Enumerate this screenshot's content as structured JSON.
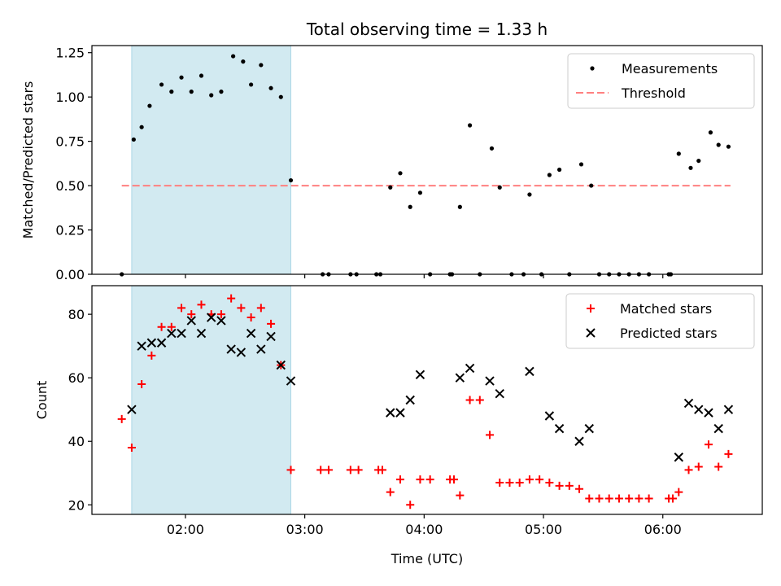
{
  "title": "Total observing time = 1.33 h",
  "colors": {
    "measurement": "#000000",
    "threshold": "#ff8080",
    "matched": "#ff0000",
    "predicted": "#000000",
    "highlight": "#add8e6"
  },
  "chart_data": [
    {
      "type": "scatter",
      "xlabel": "",
      "ylabel": "Matched/Predicted stars",
      "xlim": [
        "01:13",
        "06:50"
      ],
      "ylim": [
        0,
        1.29
      ],
      "yticks": [
        "0.00",
        "0.25",
        "0.50",
        "0.75",
        "1.00",
        "1.25"
      ],
      "xticks": [
        "02:00",
        "03:00",
        "04:00",
        "05:00",
        "06:00"
      ],
      "highlight_span": [
        "01:33",
        "02:53"
      ],
      "legend": {
        "placement": "top-right",
        "entries": [
          "Measurements",
          "Threshold"
        ]
      },
      "threshold": {
        "name": "Threshold",
        "value": 0.5,
        "x": [
          "01:28",
          "06:34"
        ]
      },
      "series": [
        {
          "name": "Measurements",
          "points": [
            [
              "01:28",
              0
            ],
            [
              "01:34",
              0.76
            ],
            [
              "01:38",
              0.83
            ],
            [
              "01:42",
              0.95
            ],
            [
              "01:48",
              1.07
            ],
            [
              "01:53",
              1.03
            ],
            [
              "01:58",
              1.11
            ],
            [
              "02:03",
              1.03
            ],
            [
              "02:08",
              1.12
            ],
            [
              "02:13",
              1.01
            ],
            [
              "02:18",
              1.03
            ],
            [
              "02:24",
              1.23
            ],
            [
              "02:29",
              1.2
            ],
            [
              "02:33",
              1.07
            ],
            [
              "02:38",
              1.18
            ],
            [
              "02:43",
              1.05
            ],
            [
              "02:48",
              1.0
            ],
            [
              "02:53",
              0.53
            ],
            [
              "03:09",
              0
            ],
            [
              "03:12",
              0
            ],
            [
              "03:23",
              0
            ],
            [
              "03:26",
              0
            ],
            [
              "03:36",
              0
            ],
            [
              "03:38",
              0
            ],
            [
              "03:43",
              0.49
            ],
            [
              "03:48",
              0.57
            ],
            [
              "03:53",
              0.38
            ],
            [
              "03:58",
              0.46
            ],
            [
              "04:03",
              0
            ],
            [
              "04:13",
              0
            ],
            [
              "04:14",
              0
            ],
            [
              "04:18",
              0.38
            ],
            [
              "04:23",
              0.84
            ],
            [
              "04:28",
              0
            ],
            [
              "04:34",
              0.71
            ],
            [
              "04:38",
              0.49
            ],
            [
              "04:44",
              0
            ],
            [
              "04:50",
              0
            ],
            [
              "04:53",
              0.45
            ],
            [
              "04:59",
              0
            ],
            [
              "05:03",
              0.56
            ],
            [
              "05:08",
              0.59
            ],
            [
              "05:13",
              0
            ],
            [
              "05:19",
              0.62
            ],
            [
              "05:24",
              0.5
            ],
            [
              "05:28",
              0
            ],
            [
              "05:33",
              0
            ],
            [
              "05:38",
              0
            ],
            [
              "05:43",
              0
            ],
            [
              "05:48",
              0
            ],
            [
              "05:53",
              0
            ],
            [
              "06:03",
              0
            ],
            [
              "06:04",
              0
            ],
            [
              "06:08",
              0.68
            ],
            [
              "06:14",
              0.6
            ],
            [
              "06:18",
              0.64
            ],
            [
              "06:24",
              0.8
            ],
            [
              "06:28",
              0.73
            ],
            [
              "06:33",
              0.72
            ]
          ]
        }
      ]
    },
    {
      "type": "scatter",
      "xlabel": "Time (UTC)",
      "ylabel": "Count",
      "xlim": [
        "01:13",
        "06:50"
      ],
      "ylim": [
        17,
        89
      ],
      "yticks": [
        "20",
        "40",
        "60",
        "80"
      ],
      "xticks": [
        "02:00",
        "03:00",
        "04:00",
        "05:00",
        "06:00"
      ],
      "highlight_span": [
        "01:33",
        "02:53"
      ],
      "legend": {
        "placement": "top-right",
        "entries": [
          "Matched stars",
          "Predicted stars"
        ]
      },
      "series": [
        {
          "name": "Matched stars",
          "marker": "+",
          "points": [
            [
              "01:28",
              47
            ],
            [
              "01:33",
              38
            ],
            [
              "01:38",
              58
            ],
            [
              "01:43",
              67
            ],
            [
              "01:48",
              76
            ],
            [
              "01:53",
              76
            ],
            [
              "01:58",
              82
            ],
            [
              "02:03",
              80
            ],
            [
              "02:08",
              83
            ],
            [
              "02:13",
              80
            ],
            [
              "02:18",
              80
            ],
            [
              "02:23",
              85
            ],
            [
              "02:28",
              82
            ],
            [
              "02:33",
              79
            ],
            [
              "02:38",
              82
            ],
            [
              "02:43",
              77
            ],
            [
              "02:48",
              64
            ],
            [
              "02:53",
              31
            ],
            [
              "03:08",
              31
            ],
            [
              "03:12",
              31
            ],
            [
              "03:23",
              31
            ],
            [
              "03:27",
              31
            ],
            [
              "03:37",
              31
            ],
            [
              "03:39",
              31
            ],
            [
              "03:43",
              24
            ],
            [
              "03:48",
              28
            ],
            [
              "03:53",
              20
            ],
            [
              "03:58",
              28
            ],
            [
              "04:03",
              28
            ],
            [
              "04:13",
              28
            ],
            [
              "04:15",
              28
            ],
            [
              "04:18",
              23
            ],
            [
              "04:23",
              53
            ],
            [
              "04:28",
              53
            ],
            [
              "04:33",
              42
            ],
            [
              "04:38",
              27
            ],
            [
              "04:43",
              27
            ],
            [
              "04:48",
              27
            ],
            [
              "04:53",
              28
            ],
            [
              "04:58",
              28
            ],
            [
              "05:03",
              27
            ],
            [
              "05:08",
              26
            ],
            [
              "05:13",
              26
            ],
            [
              "05:18",
              25
            ],
            [
              "05:23",
              22
            ],
            [
              "05:28",
              22
            ],
            [
              "05:33",
              22
            ],
            [
              "05:38",
              22
            ],
            [
              "05:43",
              22
            ],
            [
              "05:48",
              22
            ],
            [
              "05:53",
              22
            ],
            [
              "06:03",
              22
            ],
            [
              "06:05",
              22
            ],
            [
              "06:08",
              24
            ],
            [
              "06:13",
              31
            ],
            [
              "06:18",
              32
            ],
            [
              "06:23",
              39
            ],
            [
              "06:28",
              32
            ],
            [
              "06:33",
              36
            ]
          ]
        },
        {
          "name": "Predicted stars",
          "marker": "x",
          "points": [
            [
              "01:33",
              50
            ],
            [
              "01:38",
              70
            ],
            [
              "01:43",
              71
            ],
            [
              "01:48",
              71
            ],
            [
              "01:53",
              74
            ],
            [
              "01:58",
              74
            ],
            [
              "02:03",
              78
            ],
            [
              "02:08",
              74
            ],
            [
              "02:13",
              79
            ],
            [
              "02:18",
              78
            ],
            [
              "02:23",
              69
            ],
            [
              "02:28",
              68
            ],
            [
              "02:33",
              74
            ],
            [
              "02:38",
              69
            ],
            [
              "02:43",
              73
            ],
            [
              "02:48",
              64
            ],
            [
              "02:53",
              59
            ],
            [
              "03:43",
              49
            ],
            [
              "03:48",
              49
            ],
            [
              "03:53",
              53
            ],
            [
              "03:58",
              61
            ],
            [
              "04:18",
              60
            ],
            [
              "04:23",
              63
            ],
            [
              "04:33",
              59
            ],
            [
              "04:38",
              55
            ],
            [
              "04:53",
              62
            ],
            [
              "05:03",
              48
            ],
            [
              "05:08",
              44
            ],
            [
              "05:18",
              40
            ],
            [
              "05:23",
              44
            ],
            [
              "06:08",
              35
            ],
            [
              "06:13",
              52
            ],
            [
              "06:18",
              50
            ],
            [
              "06:23",
              49
            ],
            [
              "06:28",
              44
            ],
            [
              "06:33",
              50
            ]
          ]
        }
      ]
    }
  ]
}
